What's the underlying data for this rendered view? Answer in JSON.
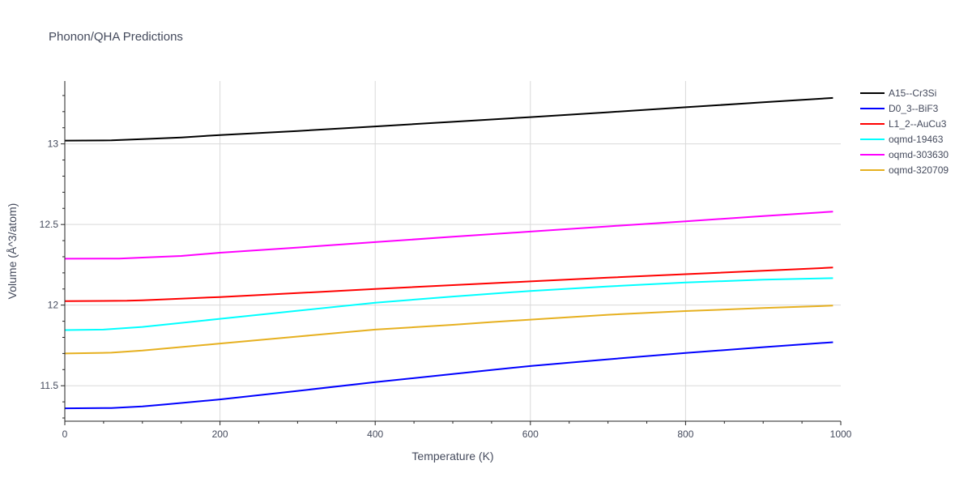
{
  "chart_data": {
    "type": "line",
    "title": "Phonon/QHA Predictions",
    "xlabel": "Temperature (K)",
    "ylabel": "Volume (Å^3/atom)",
    "xlim": [
      0,
      1000
    ],
    "ylim": [
      11.28,
      13.39
    ],
    "x_ticks": [
      0,
      200,
      400,
      600,
      800,
      1000
    ],
    "y_ticks": [
      11.5,
      12,
      12.5,
      13
    ],
    "x_tick_labels": [
      "0",
      "200",
      "400",
      "600",
      "800",
      "1000"
    ],
    "y_tick_labels": [
      "11.5",
      "12",
      "12.5",
      "13"
    ],
    "grid": true,
    "legend_position": "top-right",
    "series": [
      {
        "name": "A15--Cr3Si",
        "color": "#000000",
        "x": [
          0,
          60,
          100,
          150,
          200,
          300,
          400,
          500,
          600,
          700,
          800,
          900,
          990
        ],
        "y": [
          13.02,
          13.022,
          13.03,
          13.04,
          13.055,
          13.08,
          13.108,
          13.137,
          13.166,
          13.196,
          13.227,
          13.258,
          13.285
        ]
      },
      {
        "name": "D0_3--BiF3",
        "color": "#0000ff",
        "x": [
          0,
          60,
          100,
          130,
          200,
          300,
          400,
          500,
          550,
          600,
          700,
          800,
          900,
          990
        ],
        "y": [
          11.36,
          11.362,
          11.372,
          11.384,
          11.415,
          11.468,
          11.522,
          11.573,
          11.598,
          11.622,
          11.664,
          11.703,
          11.739,
          11.77
        ]
      },
      {
        "name": "L1_2--AuCu3",
        "color": "#ff0000",
        "x": [
          0,
          80,
          100,
          200,
          300,
          400,
          500,
          600,
          700,
          800,
          900,
          990
        ],
        "y": [
          12.025,
          12.027,
          12.03,
          12.05,
          12.075,
          12.1,
          12.124,
          12.147,
          12.17,
          12.192,
          12.213,
          12.233
        ]
      },
      {
        "name": "oqmd-19463",
        "color": "#00ffff",
        "x": [
          0,
          50,
          100,
          200,
          300,
          400,
          500,
          600,
          700,
          800,
          900,
          990
        ],
        "y": [
          11.845,
          11.848,
          11.865,
          11.915,
          11.965,
          12.015,
          12.053,
          12.088,
          12.116,
          12.14,
          12.158,
          12.167
        ]
      },
      {
        "name": "oqmd-303630",
        "color": "#ff00ff",
        "x": [
          0,
          70,
          100,
          150,
          200,
          300,
          400,
          500,
          600,
          700,
          800,
          900,
          990
        ],
        "y": [
          12.288,
          12.289,
          12.295,
          12.305,
          12.325,
          12.357,
          12.391,
          12.424,
          12.456,
          12.488,
          12.52,
          12.552,
          12.58
        ]
      },
      {
        "name": "oqmd-320709",
        "color": "#e6b020",
        "x": [
          0,
          60,
          100,
          200,
          300,
          400,
          500,
          550,
          600,
          700,
          800,
          900,
          990
        ],
        "y": [
          11.7,
          11.705,
          11.718,
          11.762,
          11.805,
          11.848,
          11.878,
          11.895,
          11.91,
          11.94,
          11.963,
          11.982,
          11.997
        ]
      }
    ]
  }
}
